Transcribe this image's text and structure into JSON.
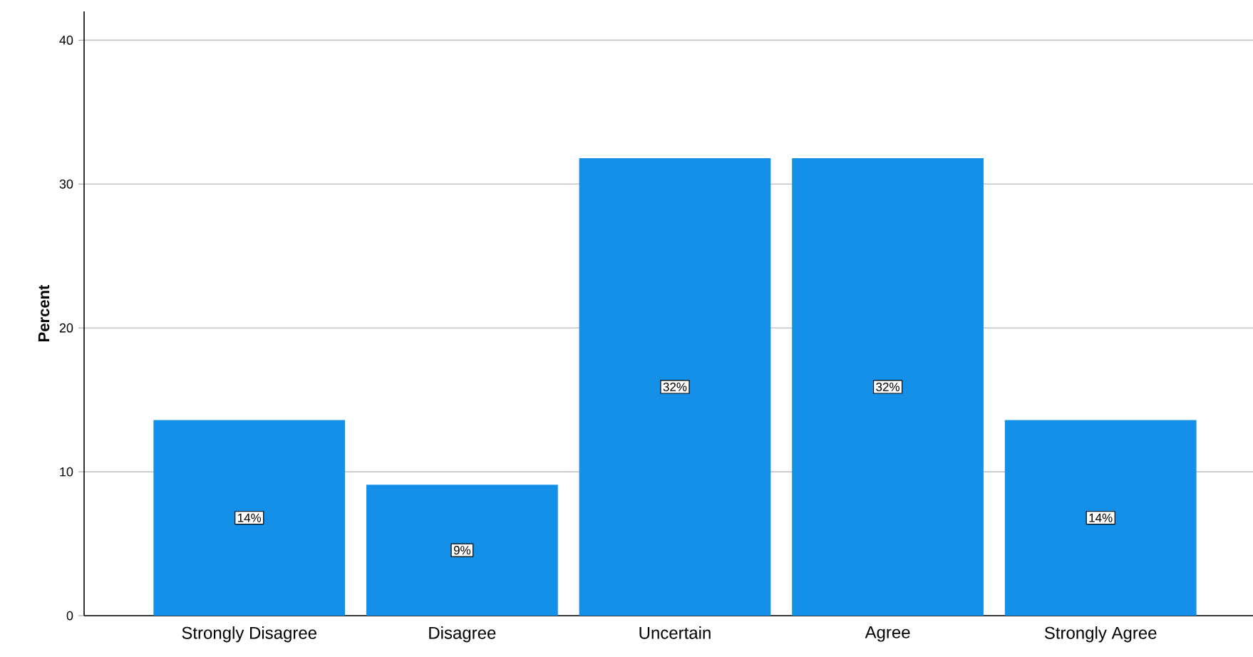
{
  "chart_data": {
    "type": "bar",
    "ylabel": "Percent",
    "categories": [
      "Strongly Disagree",
      "Disagree",
      "Uncertain",
      "Agree",
      "Strongly Agree"
    ],
    "values": [
      13.6,
      9.1,
      31.8,
      31.8,
      13.6
    ],
    "value_labels": [
      "14%",
      "9%",
      "32%",
      "32%",
      "14%"
    ],
    "color": "#1490e8",
    "ylim": [
      0,
      42
    ],
    "yticks": [
      0,
      10,
      20,
      30,
      40
    ],
    "grid": "y"
  }
}
